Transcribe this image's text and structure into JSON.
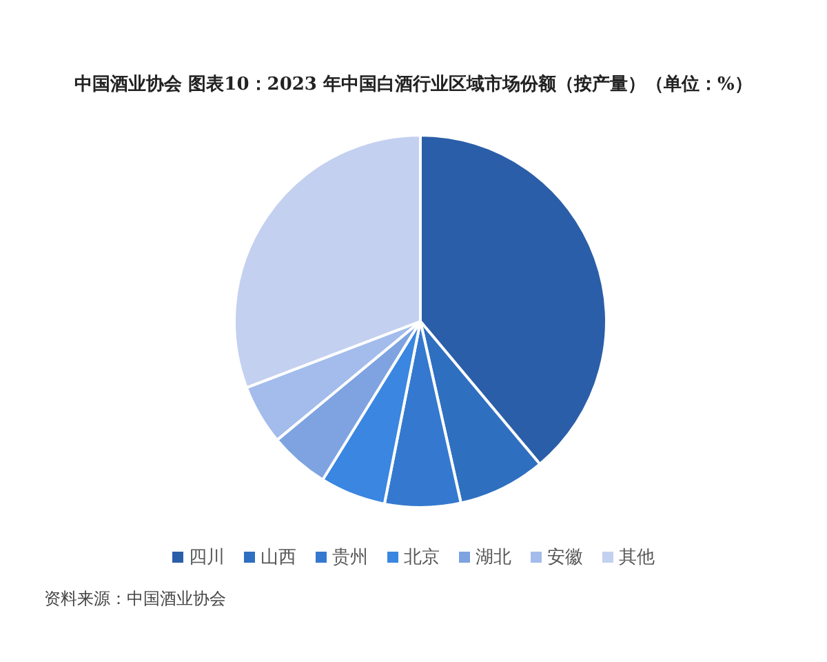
{
  "chart_data": {
    "type": "pie",
    "title": "中国酒业协会 图表10：2023 年中国白酒行业区域市场份额（按产量）（单位：%）",
    "categories": [
      "四川",
      "山西",
      "贵州",
      "北京",
      "湖北",
      "安徽",
      "其他"
    ],
    "values": [
      38.9,
      7.6,
      6.6,
      5.7,
      5.2,
      5.2,
      30.8
    ],
    "colors": [
      "#2b5ea8",
      "#2f6fc0",
      "#3479cf",
      "#3a86e0",
      "#7ea3e0",
      "#a3bcec",
      "#c3d0f0"
    ],
    "legend": "bottom",
    "annotations": [
      "资料来源：中国酒业协会"
    ]
  }
}
